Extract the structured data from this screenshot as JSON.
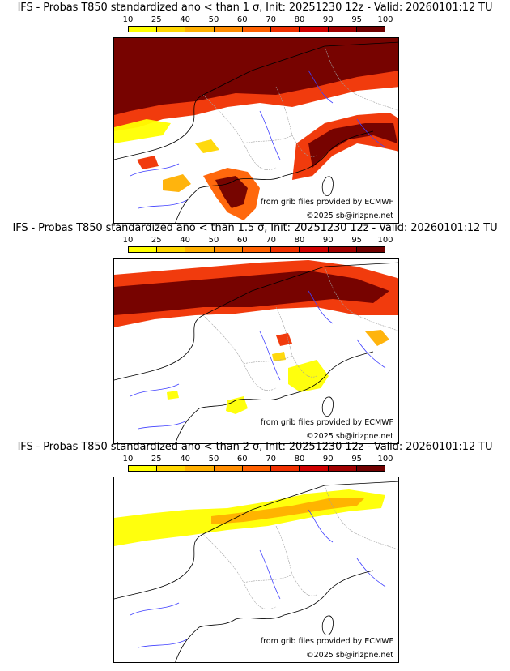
{
  "colorbar": {
    "ticks": [
      "10",
      "25",
      "40",
      "50",
      "60",
      "70",
      "80",
      "90",
      "95",
      "100"
    ],
    "colors": [
      "#ffff00",
      "#ffd700",
      "#ffb000",
      "#ff8c00",
      "#ff6000",
      "#f03000",
      "#d00000",
      "#a00000",
      "#700000"
    ]
  },
  "panels": [
    {
      "title": "IFS - Probas T850  standardized ano < than 1 σ, Init: 20251230 12z - Valid: 20260101:12 TU",
      "source_text": "from grib files provided by ECMWF",
      "copyright_text": "©2025 sb@irizpne.net",
      "probability_areas": [
        {
          "zone": "north-band",
          "level": 100
        },
        {
          "zone": "alps-east",
          "level": 100
        },
        {
          "zone": "gulf-of-lion",
          "level": 95
        },
        {
          "zone": "pyrenees",
          "level": 70
        },
        {
          "zone": "biscay",
          "level": 25
        }
      ]
    },
    {
      "title": "IFS - Probas T850  standardized ano < than 1.5 σ, Init: 20251230 12z - Valid: 20260101:12 TU",
      "source_text": "from grib files provided by ECMWF",
      "copyright_text": "©2025 sb@irizpne.net",
      "probability_areas": [
        {
          "zone": "north-band",
          "level": 100
        },
        {
          "zone": "alps-east",
          "level": 70
        },
        {
          "zone": "corsica",
          "level": 25
        },
        {
          "zone": "pyrenees",
          "level": 10
        }
      ]
    },
    {
      "title": "IFS - Probas T850  standardized ano < than 2 σ, Init: 20251230 12z - Valid: 20260101:12 TU",
      "source_text": "from grib files provided by ECMWF",
      "copyright_text": "©2025 sb@irizpne.net",
      "probability_areas": [
        {
          "zone": "north-band",
          "level": 40
        }
      ]
    }
  ]
}
